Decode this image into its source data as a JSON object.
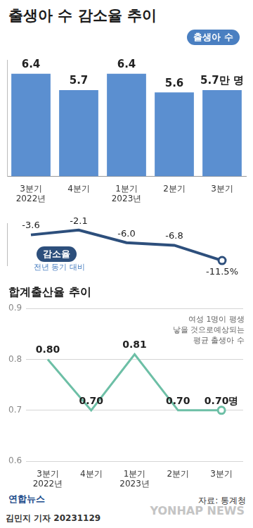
{
  "title": "출생아 수 감소율 추이",
  "chart_data": [
    {
      "type": "bar",
      "annotations": [
        "출생아 수"
      ],
      "categories": [
        [
          "3분기",
          "2022년"
        ],
        [
          "4분기"
        ],
        [
          "1분기",
          "2023년"
        ],
        [
          "2분기"
        ],
        [
          "3분기"
        ]
      ],
      "values": [
        6.4,
        5.7,
        6.4,
        5.6,
        5.7
      ],
      "value_labels": [
        "6.4",
        "5.7",
        "6.4",
        "5.6",
        "5.7만 명"
      ],
      "color": "#5b8fd0",
      "ylim": [
        2,
        7
      ],
      "grid": false,
      "data_labels": true,
      "tick_labels": "x"
    },
    {
      "type": "line",
      "annotations": [
        "감소율",
        "전년 동기 대비"
      ],
      "categories": [
        null,
        null,
        null,
        null,
        null
      ],
      "values": [
        -3.6,
        -2.1,
        -6.0,
        -6.8,
        -11.5
      ],
      "value_labels": [
        "-3.6",
        "-2.1",
        "-6.0",
        "-6.8",
        "-11.5%"
      ],
      "color": "#2d4f7c",
      "ylim": [
        -13,
        0
      ],
      "grid": false,
      "data_labels": true,
      "tick_labels": false
    },
    {
      "type": "line",
      "title": "합계출산율 추이",
      "annotations": [
        [
          "여성 1명이 평생",
          "낳을 것으로예상되는",
          "평균 출생아 수"
        ]
      ],
      "categories": [
        [
          "3분기",
          "2022년"
        ],
        [
          "4분기"
        ],
        [
          "1분기",
          "2023년"
        ],
        [
          "2분기"
        ],
        [
          "3분기"
        ]
      ],
      "values": [
        0.8,
        0.7,
        0.81,
        0.7,
        0.7
      ],
      "value_labels": [
        "0.80",
        "0.70",
        "0.81",
        "0.70",
        "0.70명"
      ],
      "color": "#6dbfa6",
      "ylim": [
        0.6,
        0.9
      ],
      "yticks": [
        0.6,
        0.7,
        0.8,
        0.9
      ],
      "grid": true,
      "data_labels": true
    }
  ],
  "source": "자료: 통계청",
  "agency": "연합뉴스",
  "credit": "김민지 기자 20231129",
  "watermark": "YONHAP NEWS"
}
